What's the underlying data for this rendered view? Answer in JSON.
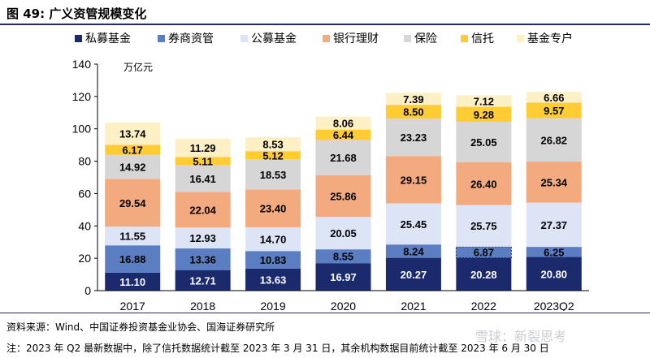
{
  "figure": {
    "title": "图 49:  广义资管规模变化",
    "source": "资料来源：Wind、中国证券投资基金业协会、国海证券研究所",
    "note": "注：2023 年 Q2 最新数据中，除了信托数据统计截至 2023 年 3 月 31 日，其余机构数据目前统计截至 2023 年 6 月 30 日",
    "watermark": "雪球：新裂思考"
  },
  "chart_data": {
    "type": "bar",
    "stacked": true,
    "unit_label": "万亿元",
    "categories": [
      "2017",
      "2018",
      "2019",
      "2020",
      "2021",
      "2022",
      "2023Q2"
    ],
    "ylim": [
      0,
      140
    ],
    "yticks": [
      0,
      20,
      40,
      60,
      80,
      100,
      120,
      140
    ],
    "grid": false,
    "legend_position": "top",
    "series": [
      {
        "name": "私募基金",
        "color": "#1a2a6c",
        "label_color": "#ffffff",
        "values": [
          11.1,
          12.71,
          13.63,
          16.97,
          20.27,
          20.28,
          20.8
        ]
      },
      {
        "name": "券商资管",
        "color": "#5b7ec2",
        "label_color": "#000000",
        "values": [
          16.88,
          13.36,
          10.83,
          8.55,
          8.24,
          6.87,
          6.25
        ]
      },
      {
        "name": "公募基金",
        "color": "#dde4f5",
        "label_color": "#000000",
        "values": [
          11.55,
          12.93,
          14.7,
          20.05,
          25.45,
          25.75,
          27.37
        ]
      },
      {
        "name": "银行理财",
        "color": "#f4aa7f",
        "label_color": "#000000",
        "values": [
          29.54,
          22.04,
          23.4,
          25.86,
          29.15,
          26.4,
          25.34
        ]
      },
      {
        "name": "保险",
        "color": "#d6d6d6",
        "label_color": "#000000",
        "values": [
          14.92,
          16.41,
          18.53,
          21.68,
          23.23,
          25.05,
          26.82
        ]
      },
      {
        "name": "信托",
        "color": "#ffcc33",
        "label_color": "#000000",
        "values": [
          6.17,
          5.11,
          5.12,
          6.44,
          8.5,
          9.28,
          9.57
        ]
      },
      {
        "name": "基金专户",
        "color": "#fdf0c4",
        "label_color": "#000000",
        "values": [
          13.74,
          11.29,
          8.53,
          8.06,
          7.39,
          7.12,
          6.66
        ]
      }
    ]
  }
}
